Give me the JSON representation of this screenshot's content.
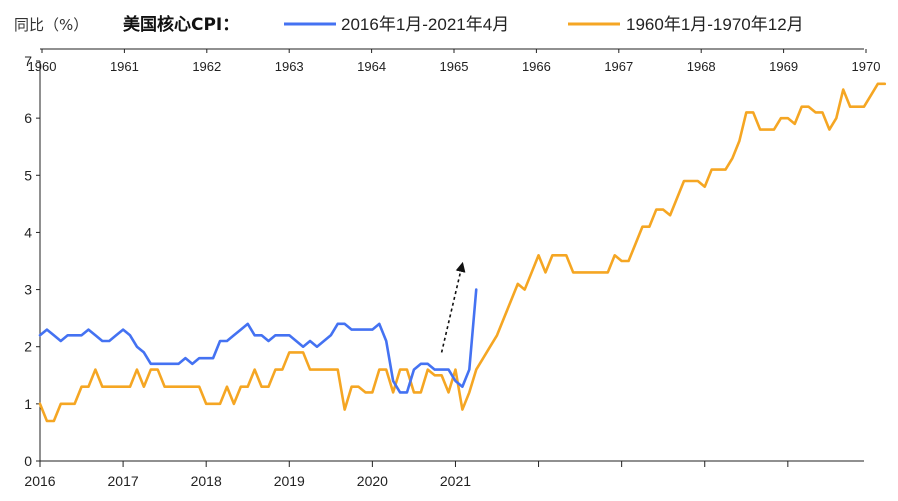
{
  "chart_data": {
    "type": "line",
    "ylabel": "同比（%）",
    "legend_title": "美国核心CPI：",
    "legend_placement": "top",
    "ylim": [
      0,
      7
    ],
    "yticks": [
      "0",
      "1",
      "2",
      "3",
      "4",
      "5",
      "6",
      "7"
    ],
    "bottom_axis": {
      "label_years": [
        "2016",
        "2017",
        "2018",
        "2019",
        "2020",
        "2021"
      ],
      "range": [
        "2016-01",
        "2025-12"
      ]
    },
    "top_axis": {
      "label_years": [
        "1960",
        "1961",
        "1962",
        "1963",
        "1964",
        "1965",
        "1966",
        "1967",
        "1968",
        "1969",
        "1970"
      ],
      "range": [
        "1960-01",
        "1970-01"
      ]
    },
    "grid": false,
    "series": [
      {
        "name": "2016年1月-2021年4月",
        "color": "#4472F2",
        "axis": "bottom",
        "start": "2016-01",
        "values": [
          2.2,
          2.3,
          2.2,
          2.1,
          2.2,
          2.2,
          2.2,
          2.3,
          2.2,
          2.1,
          2.1,
          2.2,
          2.3,
          2.2,
          2.0,
          1.9,
          1.7,
          1.7,
          1.7,
          1.7,
          1.7,
          1.8,
          1.7,
          1.8,
          1.8,
          1.8,
          2.1,
          2.1,
          2.2,
          2.3,
          2.4,
          2.2,
          2.2,
          2.1,
          2.2,
          2.2,
          2.2,
          2.1,
          2.0,
          2.1,
          2.0,
          2.1,
          2.2,
          2.4,
          2.4,
          2.3,
          2.3,
          2.3,
          2.3,
          2.4,
          2.1,
          1.4,
          1.2,
          1.2,
          1.6,
          1.7,
          1.7,
          1.6,
          1.6,
          1.6,
          1.4,
          1.3,
          1.6,
          3.0
        ]
      },
      {
        "name": "1960年1月-1970年12月",
        "color": "#F5A623",
        "axis": "bottom",
        "start": "2016-01",
        "values": [
          1.0,
          0.7,
          0.7,
          1.0,
          1.0,
          1.0,
          1.3,
          1.3,
          1.6,
          1.3,
          1.3,
          1.3,
          1.3,
          1.3,
          1.6,
          1.3,
          1.6,
          1.6,
          1.3,
          1.3,
          1.3,
          1.3,
          1.3,
          1.3,
          1.0,
          1.0,
          1.0,
          1.3,
          1.0,
          1.3,
          1.3,
          1.6,
          1.3,
          1.3,
          1.6,
          1.6,
          1.9,
          1.9,
          1.9,
          1.6,
          1.6,
          1.6,
          1.6,
          1.6,
          0.9,
          1.3,
          1.3,
          1.2,
          1.2,
          1.6,
          1.6,
          1.2,
          1.6,
          1.6,
          1.2,
          1.2,
          1.6,
          1.5,
          1.5,
          1.2,
          1.6,
          0.9,
          1.2,
          1.6,
          1.8,
          2.0,
          2.2,
          2.5,
          2.8,
          3.1,
          3.0,
          3.3,
          3.6,
          3.3,
          3.6,
          3.6,
          3.6,
          3.3,
          3.3,
          3.3,
          3.3,
          3.3,
          3.3,
          3.6,
          3.5,
          3.5,
          3.8,
          4.1,
          4.1,
          4.4,
          4.4,
          4.3,
          4.6,
          4.9,
          4.9,
          4.9,
          4.8,
          5.1,
          5.1,
          5.1,
          5.3,
          5.6,
          6.1,
          6.1,
          5.8,
          5.8,
          5.8,
          6.0,
          6.0,
          5.9,
          6.2,
          6.2,
          6.1,
          6.1,
          5.8,
          6.0,
          6.5,
          6.2,
          6.2,
          6.2,
          6.4,
          6.6,
          6.6
        ]
      }
    ],
    "annotations": [
      {
        "type": "dashed-arrow",
        "from": {
          "x": "2020-11",
          "y": 1.9
        },
        "to": {
          "x": "2021-02",
          "y": 3.45
        }
      }
    ]
  }
}
